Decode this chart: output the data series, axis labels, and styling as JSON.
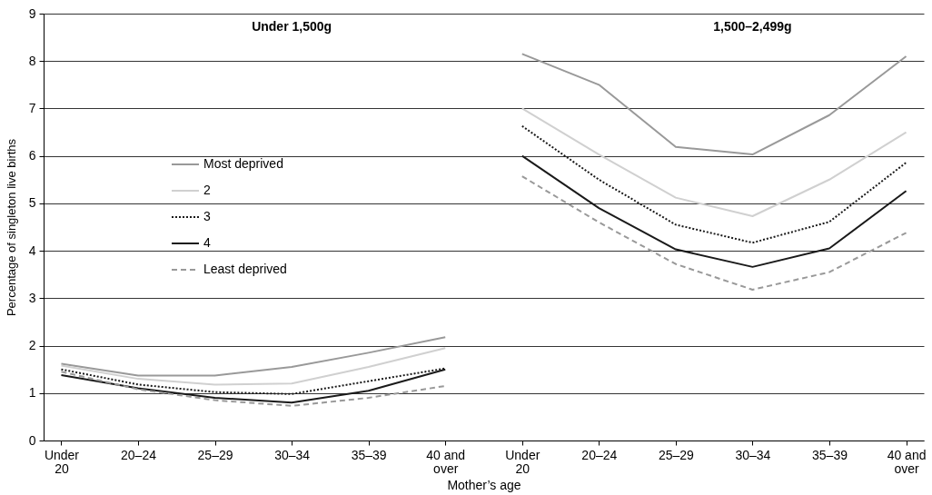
{
  "chart_data": {
    "type": "line",
    "xlabel": "Mother’s age",
    "ylabel": "Percentage of singleton live births",
    "annotations": [
      "Under 1,500g",
      "1,500–2,499g"
    ],
    "categories": [
      "Under 20",
      "20–24",
      "25–29",
      "30–34",
      "35–39",
      "40 and over",
      "Under 20",
      "20–24",
      "25–29",
      "30–34",
      "35–39",
      "40 and over"
    ],
    "series": [
      {
        "name": "Most deprived",
        "color": "#999999",
        "line_style": "solid",
        "values": [
          1.62,
          1.37,
          1.37,
          1.55,
          1.85,
          2.18,
          null,
          null,
          null,
          null,
          null,
          null
        ]
      },
      {
        "name": "2",
        "color": "#d0d0d0",
        "line_style": "solid",
        "values": [
          1.58,
          1.3,
          1.18,
          1.2,
          1.55,
          1.95,
          null,
          null,
          null,
          null,
          null,
          null
        ]
      },
      {
        "name": "3",
        "color": "#1a1a1a",
        "line_style": "dotted",
        "values": [
          1.5,
          1.18,
          1.02,
          0.98,
          1.25,
          1.52,
          null,
          null,
          null,
          null,
          null,
          null
        ]
      },
      {
        "name": "4",
        "color": "#1a1a1a",
        "line_style": "solid",
        "values": [
          1.38,
          1.1,
          0.9,
          0.8,
          1.05,
          1.5,
          null,
          null,
          null,
          null,
          null,
          null
        ]
      },
      {
        "name": "Least deprived",
        "color": "#999999",
        "line_style": "dashed",
        "values": [
          1.45,
          1.08,
          0.85,
          0.73,
          0.9,
          1.15,
          null,
          null,
          null,
          null,
          null,
          null
        ]
      },
      {
        "color": "#999999",
        "line_style": "solid",
        "values": [
          null,
          null,
          null,
          null,
          null,
          null,
          8.15,
          7.5,
          6.19,
          6.03,
          6.86,
          8.1
        ]
      },
      {
        "color": "#d0d0d0",
        "line_style": "solid",
        "values": [
          null,
          null,
          null,
          null,
          null,
          null,
          7.0,
          6.03,
          5.12,
          4.73,
          5.5,
          6.5
        ]
      },
      {
        "color": "#1a1a1a",
        "line_style": "dotted",
        "values": [
          null,
          null,
          null,
          null,
          null,
          null,
          6.63,
          5.5,
          4.55,
          4.17,
          4.61,
          5.86
        ]
      },
      {
        "color": "#1a1a1a",
        "line_style": "solid",
        "values": [
          null,
          null,
          null,
          null,
          null,
          null,
          6.0,
          4.9,
          4.03,
          3.66,
          4.05,
          5.26
        ]
      },
      {
        "color": "#999999",
        "line_style": "dashed",
        "values": [
          null,
          null,
          null,
          null,
          null,
          null,
          5.57,
          4.6,
          3.72,
          3.18,
          3.55,
          4.38
        ]
      }
    ],
    "ylim": [
      0,
      9
    ],
    "yticks": [
      0,
      1,
      2,
      3,
      4,
      5,
      6,
      7,
      8,
      9
    ],
    "grid": "y",
    "legend": "top left",
    "marker": "none"
  }
}
